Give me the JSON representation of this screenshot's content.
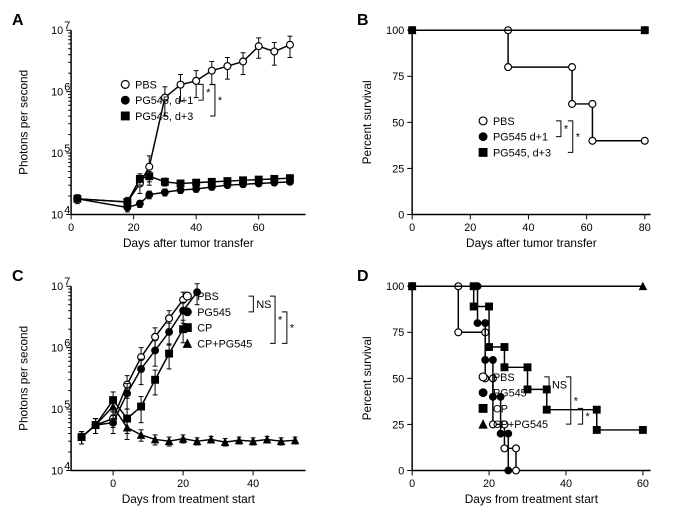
{
  "panels": {
    "A": {
      "label": "A",
      "type": "line",
      "xlabel": "Days after tumor transfer",
      "ylabel": "Photons per second",
      "xlim": [
        0,
        75
      ],
      "xticks": [
        0,
        20,
        40,
        60
      ],
      "yscale": "log",
      "ylim_exp": [
        4,
        7
      ],
      "yticks_exp": [
        4,
        5,
        6,
        7
      ],
      "series": [
        {
          "name": "PBS",
          "marker": "circle-open",
          "x": [
            2,
            18,
            22,
            25,
            30,
            35,
            40,
            45,
            50,
            55,
            60,
            65,
            70
          ],
          "y": [
            18000.0,
            16000.0,
            32000.0,
            60000.0,
            800000.0,
            1300000.0,
            1500000.0,
            2200000.0,
            2600000.0,
            3100000.0,
            5500000.0,
            4500000.0,
            5800000.0
          ],
          "yerr": [
            3000.0,
            3000.0,
            10000.0,
            30000.0,
            400000.0,
            600000.0,
            700000.0,
            900000.0,
            1000000.0,
            1200000.0,
            2000000.0,
            1800000.0,
            2200000.0
          ]
        },
        {
          "name": "PG545, d+1",
          "marker": "circle-filled",
          "x": [
            2,
            18,
            22,
            25,
            30,
            35,
            40,
            45,
            50,
            55,
            60,
            65,
            70
          ],
          "y": [
            18000.0,
            13000.0,
            15000.0,
            21000.0,
            23000.0,
            25000.0,
            26000.0,
            28000.0,
            30000.0,
            31000.0,
            32000.0,
            33000.0,
            34000.0
          ],
          "yerr": [
            2000.0,
            2000.0,
            2000.0,
            3000.0,
            3000.0,
            3000.0,
            3000.0,
            3000.0,
            3000.0,
            3000.0,
            3000.0,
            3000.0,
            3000.0
          ]
        },
        {
          "name": "PG545, d+3",
          "marker": "square-filled",
          "x": [
            2,
            18,
            22,
            25,
            30,
            35,
            40,
            45,
            50,
            55,
            60,
            65,
            70
          ],
          "y": [
            18000.0,
            16000.0,
            38000.0,
            42000.0,
            34000.0,
            32000.0,
            33000.0,
            34000.0,
            35000.0,
            36000.0,
            37000.0,
            38000.0,
            39000.0
          ],
          "yerr": [
            2000.0,
            2000.0,
            8000.0,
            8000.0,
            5000.0,
            4000.0,
            4000.0,
            4000.0,
            4000.0,
            4000.0,
            4000.0,
            4000.0,
            4000.0
          ]
        }
      ],
      "legend_pos": "inside-right",
      "brackets": [
        {
          "pairs": [
            [
              0,
              1
            ],
            [
              0,
              2
            ]
          ],
          "label": "*"
        }
      ]
    },
    "B": {
      "label": "B",
      "type": "survival",
      "xlabel": "Days after tumor transfer",
      "ylabel": "Percent survival",
      "xlim": [
        0,
        82
      ],
      "xticks": [
        0,
        20,
        40,
        60,
        80
      ],
      "ylim": [
        0,
        100
      ],
      "yticks": [
        0,
        25,
        50,
        75,
        100
      ],
      "series": [
        {
          "name": "PBS",
          "marker": "circle-open",
          "steps": [
            [
              0,
              100
            ],
            [
              33,
              100
            ],
            [
              33,
              80
            ],
            [
              55,
              80
            ],
            [
              55,
              60
            ],
            [
              62,
              60
            ],
            [
              62,
              40
            ],
            [
              80,
              40
            ]
          ]
        },
        {
          "name": "PG545 d+1",
          "marker": "circle-filled",
          "steps": [
            [
              0,
              100
            ],
            [
              80,
              100
            ]
          ]
        },
        {
          "name": "PG545, d+3",
          "marker": "square-filled",
          "steps": [
            [
              0,
              100
            ],
            [
              80,
              100
            ]
          ]
        }
      ],
      "brackets": [
        {
          "pairs": [
            [
              0,
              1
            ],
            [
              0,
              2
            ]
          ],
          "label": "*"
        }
      ]
    },
    "C": {
      "label": "C",
      "type": "line",
      "xlabel": "Days from treatment start",
      "ylabel": "Photons per second",
      "xlim": [
        -12,
        55
      ],
      "xticks": [
        0,
        20,
        40
      ],
      "yscale": "log",
      "ylim_exp": [
        4,
        7
      ],
      "yticks_exp": [
        4,
        5,
        6,
        7
      ],
      "series": [
        {
          "name": "PBS",
          "marker": "circle-open",
          "x": [
            -9,
            -5,
            0,
            4,
            8,
            12,
            16,
            20
          ],
          "y": [
            35000.0,
            55000.0,
            70000.0,
            250000.0,
            700000.0,
            1500000.0,
            3000000.0,
            6000000.0
          ],
          "yerr": [
            8000.0,
            15000.0,
            20000.0,
            100000.0,
            300000.0,
            600000.0,
            1000000.0,
            2000000.0
          ]
        },
        {
          "name": "PG545",
          "marker": "circle-filled",
          "x": [
            -9,
            -5,
            0,
            4,
            8,
            12,
            16,
            20,
            24
          ],
          "y": [
            35000.0,
            55000.0,
            60000.0,
            180000.0,
            450000.0,
            900000.0,
            1800000.0,
            4000000.0,
            8000000.0
          ],
          "yerr": [
            8000.0,
            15000.0,
            20000.0,
            80000.0,
            200000.0,
            400000.0,
            700000.0,
            1500000.0,
            3000000.0
          ]
        },
        {
          "name": "CP",
          "marker": "square-filled",
          "x": [
            -9,
            -5,
            0,
            4,
            8,
            12,
            16,
            20
          ],
          "y": [
            35000.0,
            55000.0,
            140000.0,
            70000.0,
            110000.0,
            300000.0,
            800000.0,
            2000000.0
          ],
          "yerr": [
            8000.0,
            15000.0,
            50000.0,
            30000.0,
            50000.0,
            130000.0,
            350000.0,
            800000.0
          ]
        },
        {
          "name": "CP+PG545",
          "marker": "triangle-filled",
          "x": [
            -9,
            -5,
            0,
            4,
            8,
            12,
            16,
            20,
            24,
            28,
            32,
            36,
            40,
            44,
            48,
            52
          ],
          "y": [
            35000.0,
            55000.0,
            110000.0,
            50000.0,
            38000.0,
            32000.0,
            30000.0,
            33000.0,
            30000.0,
            32000.0,
            29000.0,
            31000.0,
            30000.0,
            32000.0,
            30000.0,
            31000.0
          ],
          "yerr": [
            8000.0,
            15000.0,
            40000.0,
            18000.0,
            8000.0,
            6000.0,
            5000.0,
            5000.0,
            4000.0,
            4000.0,
            4000.0,
            4000.0,
            4000.0,
            4000.0,
            4000.0,
            4000.0
          ]
        }
      ],
      "brackets": [
        {
          "pairs": [
            [
              0,
              1
            ]
          ],
          "label": "NS"
        },
        {
          "pairs": [
            [
              0,
              3
            ],
            [
              1,
              3
            ]
          ],
          "label": "*"
        }
      ]
    },
    "D": {
      "label": "D",
      "type": "survival",
      "xlabel": "Days from treatment start",
      "ylabel": "Percent survival",
      "xlim": [
        0,
        62
      ],
      "xticks": [
        0,
        20,
        40,
        60
      ],
      "ylim": [
        0,
        100
      ],
      "yticks": [
        0,
        25,
        50,
        75,
        100
      ],
      "series": [
        {
          "name": "PBS",
          "marker": "circle-open",
          "steps": [
            [
              0,
              100
            ],
            [
              12,
              100
            ],
            [
              12,
              75
            ],
            [
              19,
              75
            ],
            [
              19,
              50
            ],
            [
              21,
              50
            ],
            [
              21,
              25
            ],
            [
              24,
              25
            ],
            [
              24,
              12
            ],
            [
              27,
              12
            ],
            [
              27,
              0
            ]
          ]
        },
        {
          "name": "PG545",
          "marker": "circle-filled",
          "steps": [
            [
              0,
              100
            ],
            [
              17,
              100
            ],
            [
              17,
              80
            ],
            [
              19,
              80
            ],
            [
              19,
              60
            ],
            [
              21,
              60
            ],
            [
              21,
              40
            ],
            [
              23,
              40
            ],
            [
              23,
              20
            ],
            [
              25,
              20
            ],
            [
              25,
              0
            ]
          ]
        },
        {
          "name": "CP",
          "marker": "square-filled",
          "steps": [
            [
              0,
              100
            ],
            [
              16,
              100
            ],
            [
              16,
              89
            ],
            [
              20,
              89
            ],
            [
              20,
              67
            ],
            [
              24,
              67
            ],
            [
              24,
              56
            ],
            [
              30,
              56
            ],
            [
              30,
              44
            ],
            [
              35,
              44
            ],
            [
              35,
              33
            ],
            [
              48,
              33
            ],
            [
              48,
              22
            ],
            [
              60,
              22
            ]
          ]
        },
        {
          "name": "CP+PG545",
          "marker": "triangle-filled",
          "steps": [
            [
              0,
              100
            ],
            [
              60,
              100
            ]
          ]
        }
      ],
      "brackets": [
        {
          "pairs": [
            [
              0,
              1
            ]
          ],
          "label": "NS"
        },
        {
          "pairs": [
            [
              0,
              3
            ],
            [
              2,
              3
            ]
          ],
          "label": "*"
        }
      ]
    }
  },
  "colors": {
    "line": "#000000",
    "background": "#ffffff",
    "marker_fill": "#000000",
    "marker_open_fill": "#ffffff"
  },
  "fonts": {
    "axis_label_size": 12,
    "tick_label_size": 11,
    "legend_size": 11,
    "panel_label_size": 16
  }
}
